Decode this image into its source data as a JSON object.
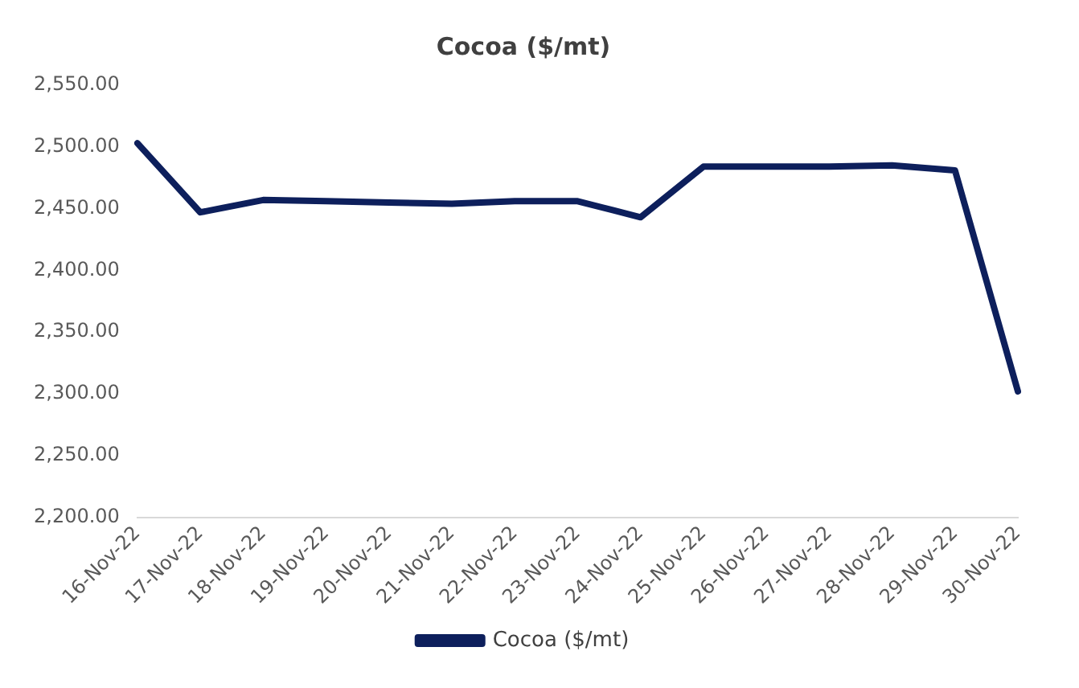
{
  "chart_data": {
    "type": "line",
    "title": "Cocoa ($/mt)",
    "categories": [
      "16-Nov-22",
      "17-Nov-22",
      "18-Nov-22",
      "19-Nov-22",
      "20-Nov-22",
      "21-Nov-22",
      "22-Nov-22",
      "23-Nov-22",
      "24-Nov-22",
      "25-Nov-22",
      "26-Nov-22",
      "27-Nov-22",
      "28-Nov-22",
      "29-Nov-22",
      "30-Nov-22"
    ],
    "series": [
      {
        "name": "Cocoa ($/mt)",
        "color": "#0d1f5c",
        "values": [
          2503,
          2447,
          2457,
          2456,
          2455,
          2454,
          2456,
          2456,
          2443,
          2484,
          2484,
          2484,
          2485,
          2481,
          2302
        ]
      }
    ],
    "ylim": [
      2200,
      2550
    ],
    "yticks": [
      {
        "value": 2200,
        "label": "2,200.00"
      },
      {
        "value": 2250,
        "label": "2,250.00"
      },
      {
        "value": 2300,
        "label": "2,300.00"
      },
      {
        "value": 2350,
        "label": "2,350.00"
      },
      {
        "value": 2400,
        "label": "2,400.00"
      },
      {
        "value": 2450,
        "label": "2,450.00"
      },
      {
        "value": 2500,
        "label": "2,500.00"
      },
      {
        "value": 2550,
        "label": "2,550.00"
      }
    ],
    "grid": false,
    "legend": "bottom",
    "marker": "none",
    "line_style": "solid"
  }
}
